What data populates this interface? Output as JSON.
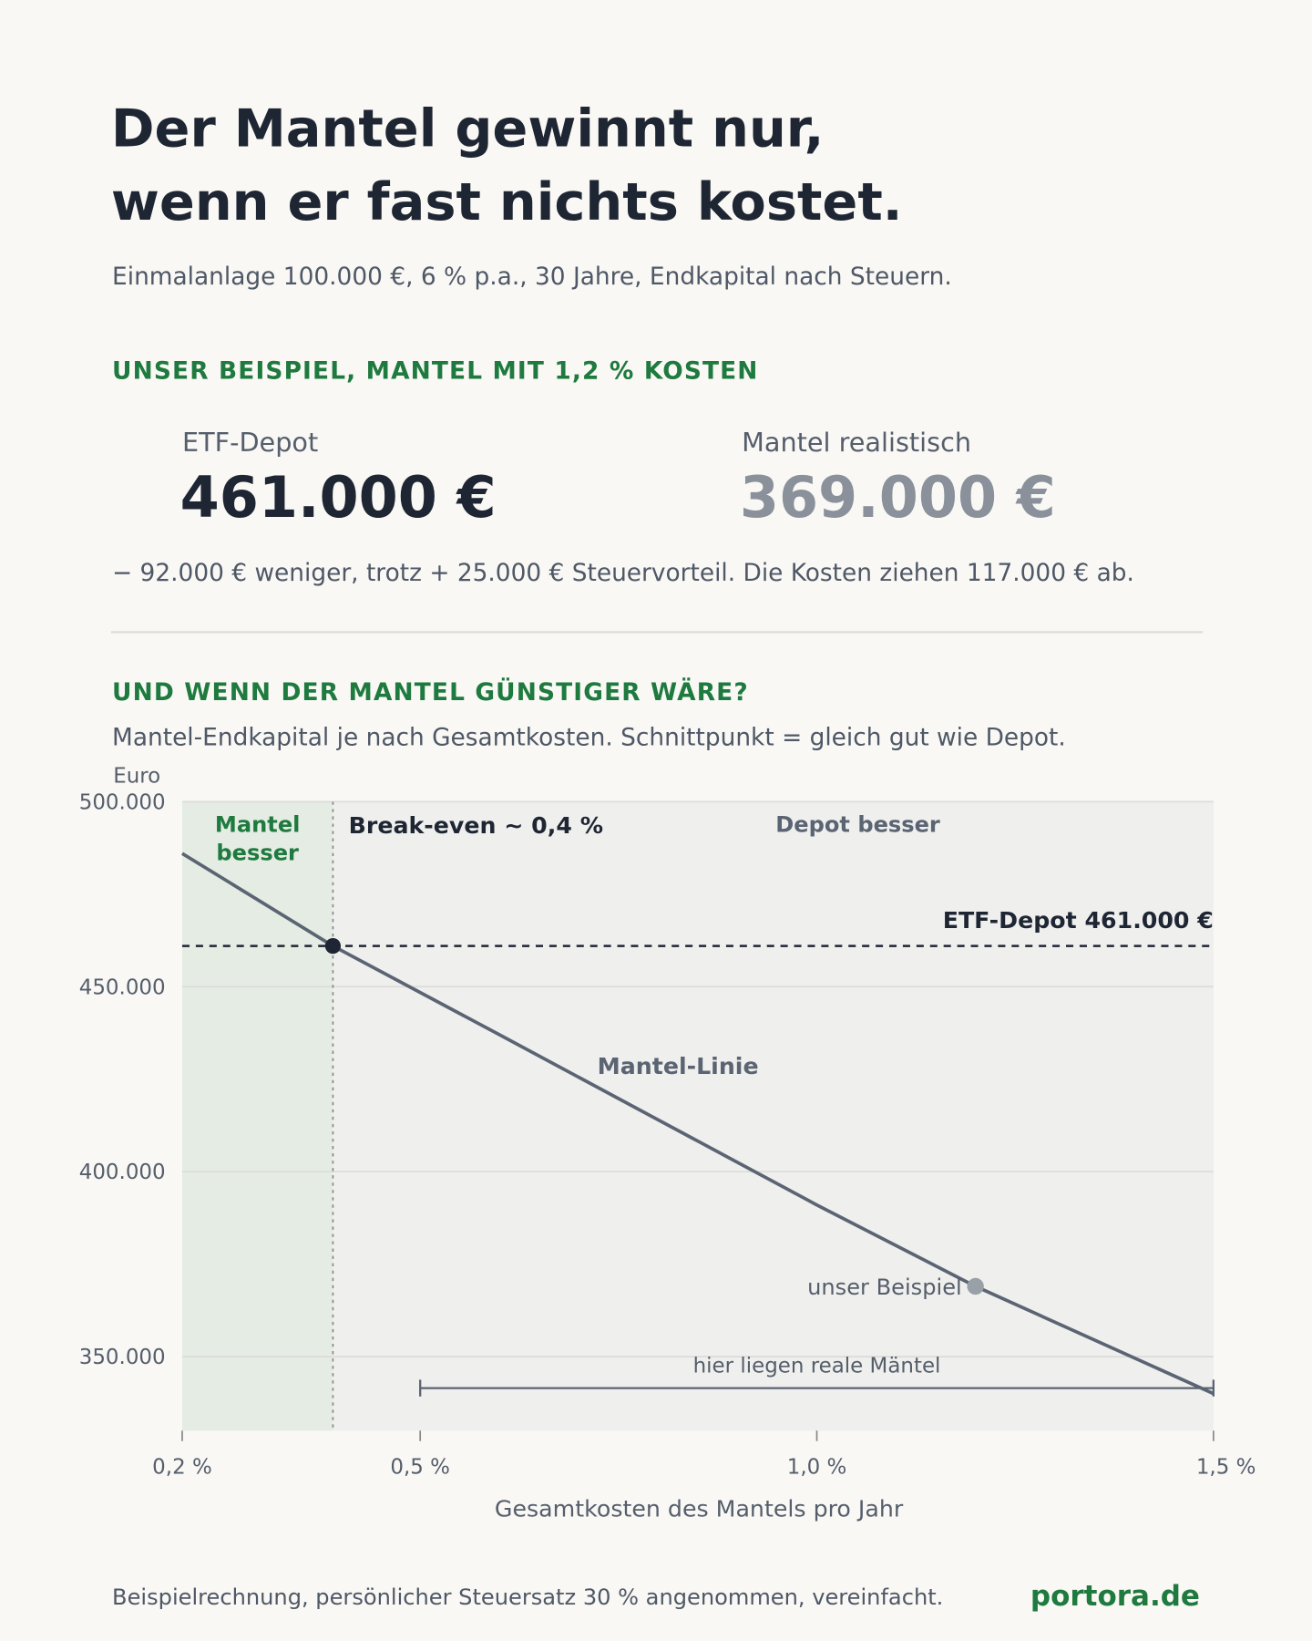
{
  "title_lines": [
    "Der Mantel gewinnt nur,",
    "wenn er fast nichts kostet."
  ],
  "subtitle": "Einmalanlage 100.000 €, 6 % p.a., 30 Jahre, Endkapital nach Steuern.",
  "example": {
    "heading": "UNSER BEISPIEL, MANTEL MIT 1,2 % KOSTEN",
    "items": [
      {
        "label": "ETF-Depot",
        "value": "461.000 €"
      },
      {
        "label": "Mantel realistisch",
        "value": "369.000 €"
      }
    ],
    "note": "− 92.000 € weniger, trotz + 25.000 € Steuervorteil. Die Kosten ziehen 117.000 € ab."
  },
  "chart_section": {
    "heading": "UND WENN DER MANTEL GÜNSTIGER WÄRE?",
    "subheading": "Mantel-Endkapital je nach Gesamtkosten. Schnittpunkt = gleich gut wie Depot."
  },
  "chart_data": {
    "type": "line",
    "y_label": "Euro",
    "x_label": "Gesamtkosten des Mantels pro Jahr",
    "x": [
      0.2,
      0.39,
      0.6,
      0.8,
      1.0,
      1.2,
      1.5
    ],
    "series": [
      {
        "name": "Mantel-Linie",
        "color": "#5b6472",
        "values": [
          486000,
          461000,
          437000,
          414000,
          391000,
          369000,
          340000
        ]
      }
    ],
    "xlim": [
      0.2,
      1.5
    ],
    "xticks": [
      {
        "value": 0.2,
        "label": "0,2 %"
      },
      {
        "value": 0.5,
        "label": "0,5 %"
      },
      {
        "value": 1.0,
        "label": "1,0 %"
      },
      {
        "value": 1.5,
        "label": "1,5 %"
      }
    ],
    "ylim": [
      330000,
      500000
    ],
    "yticks": [
      {
        "value": 350000,
        "label": "350.000"
      },
      {
        "value": 400000,
        "label": "400.000"
      },
      {
        "value": 450000,
        "label": "450.000"
      },
      {
        "value": 500000,
        "label": "500.000"
      }
    ],
    "grid": true,
    "regions": [
      {
        "label_lines": [
          "Mantel",
          "besser"
        ],
        "from": 0.2,
        "to": 0.39,
        "color": "#e5ece3",
        "label_color": "#1e7a3e"
      },
      {
        "label_lines": [
          "Depot besser"
        ],
        "from": 0.39,
        "to": 1.5,
        "color": "#efefee",
        "label_color": "#5b6472"
      }
    ],
    "reference_line": {
      "value": 461000,
      "label": "ETF-Depot 461.000 €",
      "color": "#1f2633"
    },
    "break_even": {
      "x": 0.39,
      "y": 461000,
      "label": "Break-even ~ 0,4 %",
      "color": "#1f2633"
    },
    "highlight": {
      "x": 1.2,
      "y": 369000,
      "label": "unser Beispiel",
      "color": "#9aa0a8"
    },
    "range": {
      "from": 0.5,
      "to": 1.5,
      "y": 341500,
      "label": "hier liegen reale Mäntel",
      "color": "#5b6472"
    }
  },
  "footer": {
    "note": "Beispielrechnung, persönlicher Steuersatz 30 % angenommen, vereinfacht.",
    "brand": "portora.de"
  }
}
